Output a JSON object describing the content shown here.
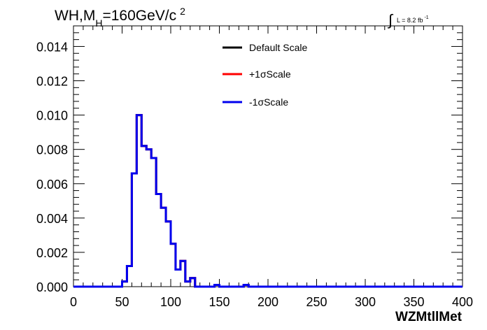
{
  "chart_data": {
    "type": "line",
    "style": "step-histogram",
    "title": {
      "prefix": "WH,M",
      "subscript": "H",
      "middle": "=160GeV/c",
      "superscript": "2"
    },
    "lumi": {
      "integral": "∫",
      "text": "L = 8.2 fb",
      "superscript": "-1"
    },
    "xlabel": "WZMtllMet",
    "ylabel": "",
    "xlim": [
      0,
      400
    ],
    "ylim": [
      0,
      0.0152
    ],
    "x_ticks": [
      0,
      50,
      100,
      150,
      200,
      250,
      300,
      350,
      400
    ],
    "x_tick_labels": [
      "0",
      "50",
      "100",
      "150",
      "200",
      "250",
      "300",
      "350",
      "400"
    ],
    "y_ticks": [
      0,
      0.002,
      0.004,
      0.006,
      0.008,
      0.01,
      0.012,
      0.014
    ],
    "y_tick_labels": [
      "0.000",
      "0.002",
      "0.004",
      "0.006",
      "0.008",
      "0.010",
      "0.012",
      "0.014"
    ],
    "grid": false,
    "legend_position": "top-center",
    "bin_edges": [
      0,
      5,
      10,
      15,
      20,
      25,
      30,
      35,
      40,
      45,
      50,
      55,
      60,
      65,
      70,
      75,
      80,
      85,
      90,
      95,
      100,
      105,
      110,
      115,
      120,
      125,
      130,
      135,
      140,
      145,
      150,
      155,
      160,
      165,
      170,
      175,
      180,
      185,
      190,
      195,
      200,
      205,
      210,
      215,
      220,
      225,
      230,
      235,
      240,
      245,
      250,
      255,
      260,
      265,
      270,
      275,
      280,
      285,
      290,
      295,
      300,
      305,
      310,
      315,
      320,
      325,
      330,
      335,
      340,
      345,
      350,
      355,
      360,
      365,
      370,
      375,
      380,
      385,
      390,
      395,
      400
    ],
    "series": [
      {
        "name": "Default Scale",
        "color": "#000000",
        "values": [
          0,
          0,
          0,
          0,
          0,
          0,
          0,
          0,
          0,
          0,
          0.0003,
          0.0012,
          0.0066,
          0.01,
          0.0082,
          0.008,
          0.0075,
          0.0054,
          0.0046,
          0.0038,
          0.0025,
          0.001,
          0.0015,
          0.0003,
          0.0005,
          0,
          0,
          0,
          0,
          0.0001,
          0,
          0,
          0,
          0,
          0,
          0.0001,
          0,
          0,
          0,
          0,
          0,
          0,
          0,
          0,
          0,
          0,
          0,
          0,
          0,
          0,
          0,
          0,
          0,
          0,
          0,
          0,
          0,
          0,
          0,
          0,
          0,
          0,
          0,
          0,
          0,
          0,
          0,
          0,
          0,
          0,
          0,
          0,
          0,
          0,
          0,
          0,
          0,
          0,
          0,
          0
        ]
      },
      {
        "name": "+1σScale",
        "color": "#ff0000",
        "values": [
          0,
          0,
          0,
          0,
          0,
          0,
          0,
          0,
          0,
          0,
          0.0003,
          0.0012,
          0.0066,
          0.01,
          0.0082,
          0.008,
          0.0075,
          0.0054,
          0.0046,
          0.0038,
          0.0025,
          0.001,
          0.0015,
          0.0003,
          0.0005,
          0,
          0,
          0,
          0,
          0.0001,
          0,
          0,
          0,
          0,
          0,
          0.0001,
          0,
          0,
          0,
          0,
          0,
          0,
          0,
          0,
          0,
          0,
          0,
          0,
          0,
          0,
          0,
          0,
          0,
          0,
          0,
          0,
          0,
          0,
          0,
          0,
          0,
          0,
          0,
          0,
          0,
          0,
          0,
          0,
          0,
          0,
          0,
          0,
          0,
          0,
          0,
          0,
          0,
          0,
          0,
          0
        ]
      },
      {
        "name": "-1σScale",
        "color": "#0000ee",
        "values": [
          0,
          0,
          0,
          0,
          0,
          0,
          0,
          0,
          0,
          0,
          0.0003,
          0.0012,
          0.0066,
          0.01,
          0.0082,
          0.008,
          0.0075,
          0.0054,
          0.0046,
          0.0038,
          0.0025,
          0.001,
          0.0015,
          0.0003,
          0.0005,
          0,
          0,
          0,
          0,
          0.0001,
          0,
          0,
          0,
          0,
          0,
          0.0001,
          0,
          0,
          0,
          0,
          0,
          0,
          0,
          0,
          0,
          0,
          0,
          0,
          0,
          0,
          0,
          0,
          0,
          0,
          0,
          0,
          0,
          0,
          0,
          0,
          0,
          0,
          0,
          0,
          0,
          0,
          0,
          0,
          0,
          0,
          0,
          0,
          0,
          0,
          0,
          0,
          0,
          0,
          0,
          0
        ]
      }
    ]
  }
}
